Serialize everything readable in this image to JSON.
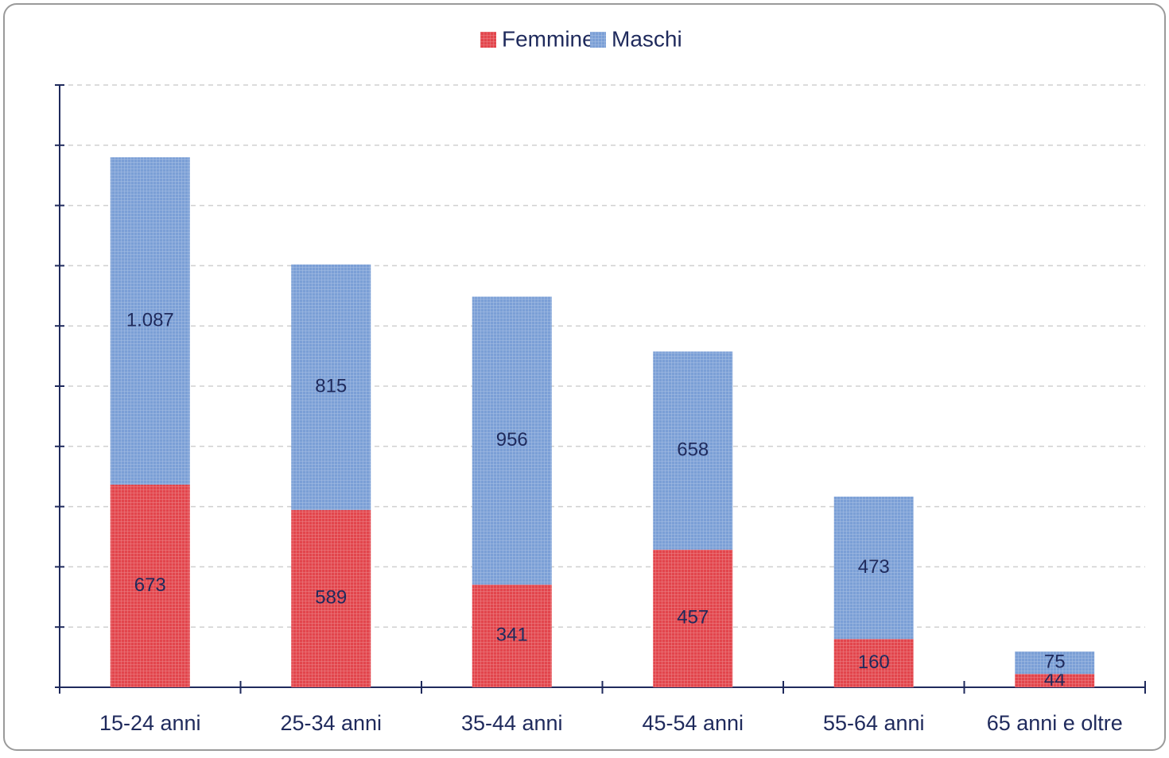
{
  "chart_data": {
    "type": "stacked_bar",
    "categories": [
      "15-24 anni",
      "25-34 anni",
      "35-44 anni",
      "45-54 anni",
      "55-64 anni",
      "65 anni e oltre"
    ],
    "series": [
      {
        "name": "Femmine",
        "color": "#e2454c",
        "values": [
          673,
          589,
          341,
          457,
          160,
          44
        ]
      },
      {
        "name": "Maschi",
        "color": "#7b9fd6",
        "values": [
          1087,
          815,
          956,
          658,
          473,
          75
        ],
        "value_labels": [
          "1.087",
          "815",
          "956",
          "658",
          "473",
          "75"
        ]
      }
    ],
    "ylim": [
      0,
      2000
    ],
    "yticks": [
      0,
      200,
      400,
      600,
      800,
      1000,
      1200,
      1400,
      1600,
      1800,
      2000
    ],
    "grid": true,
    "legend": "top"
  }
}
